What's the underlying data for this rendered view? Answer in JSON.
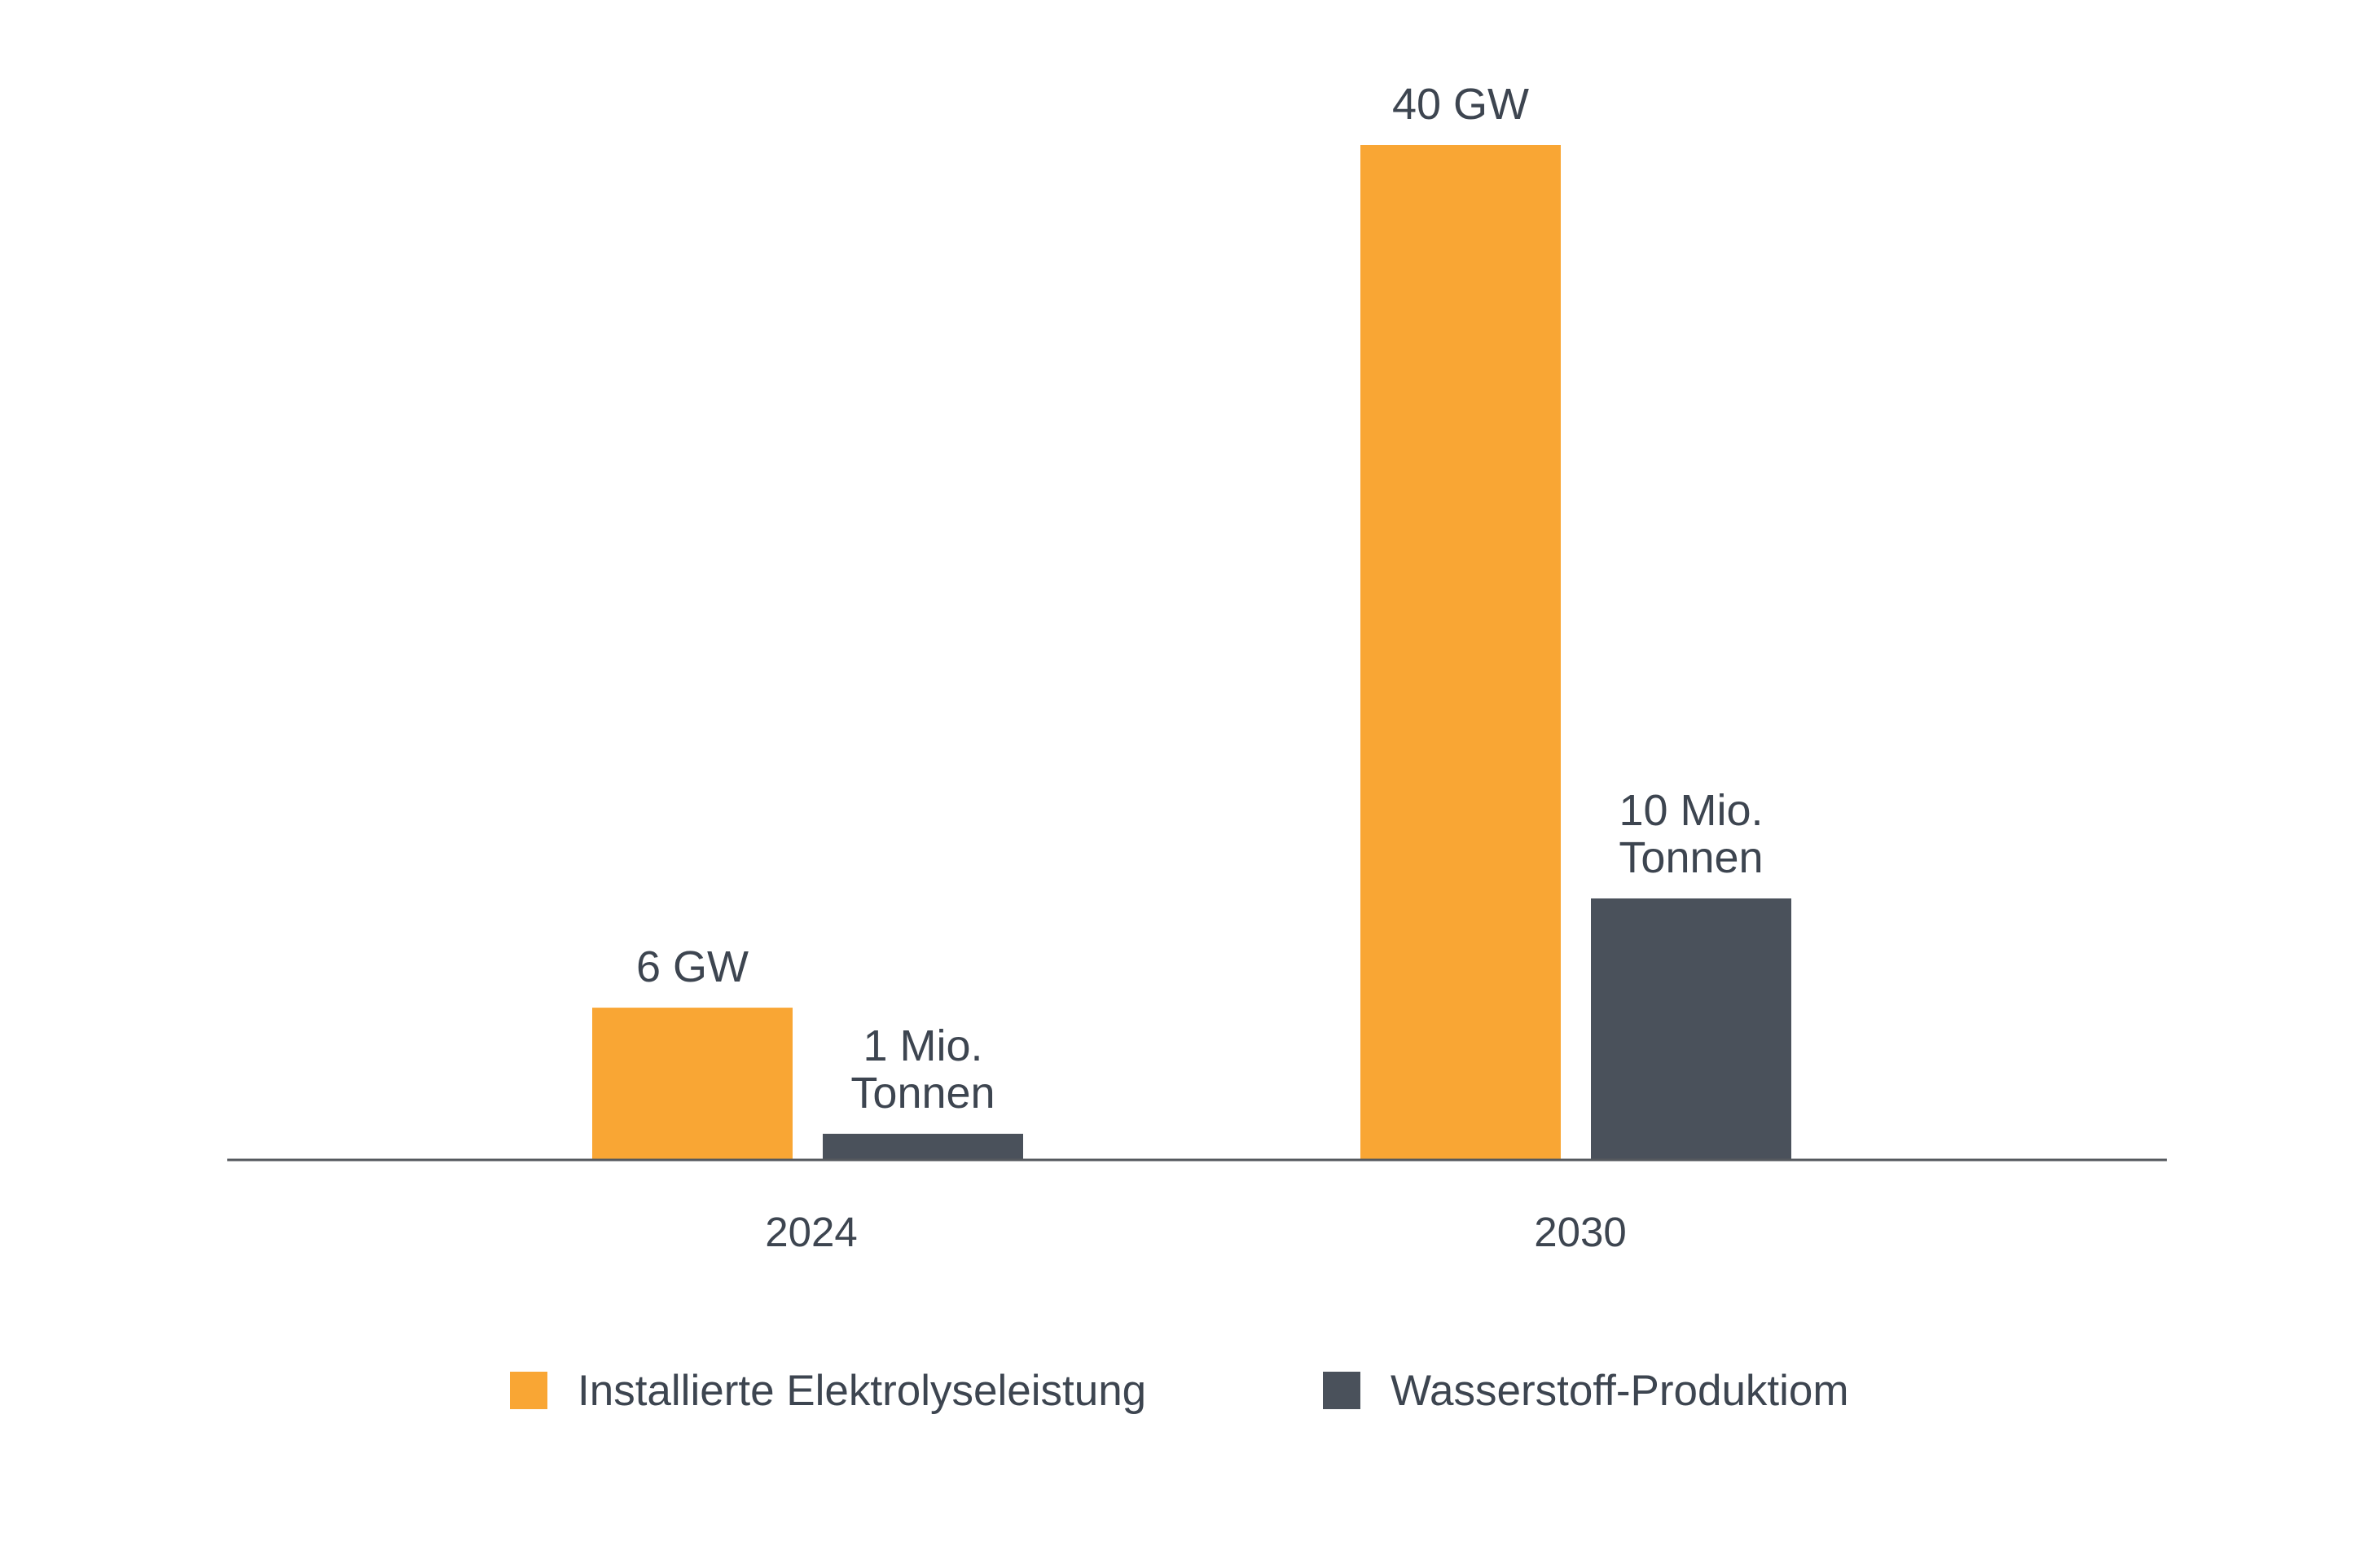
{
  "colors": {
    "orange": "#F9A634",
    "dark": "#4A515B",
    "text": "#3D4550",
    "axis": "#55595e"
  },
  "chart_data": {
    "type": "bar",
    "title": "",
    "xlabel": "",
    "ylabel": "",
    "categories": [
      "2024",
      "2030"
    ],
    "grid": false,
    "legend_position": "bottom",
    "series": [
      {
        "name": "Installierte Elektrolyseleistung",
        "unit": "GW",
        "values": [
          6,
          40
        ],
        "labels": [
          [
            "6 GW"
          ],
          [
            "40 GW"
          ]
        ]
      },
      {
        "name": "Wasserstoff-Produktiom",
        "unit": "Mio. Tonnen",
        "values": [
          1,
          10
        ],
        "labels": [
          [
            "1 Mio.",
            "Tonnen"
          ],
          [
            "10 Mio.",
            "Tonnen"
          ]
        ]
      }
    ]
  }
}
